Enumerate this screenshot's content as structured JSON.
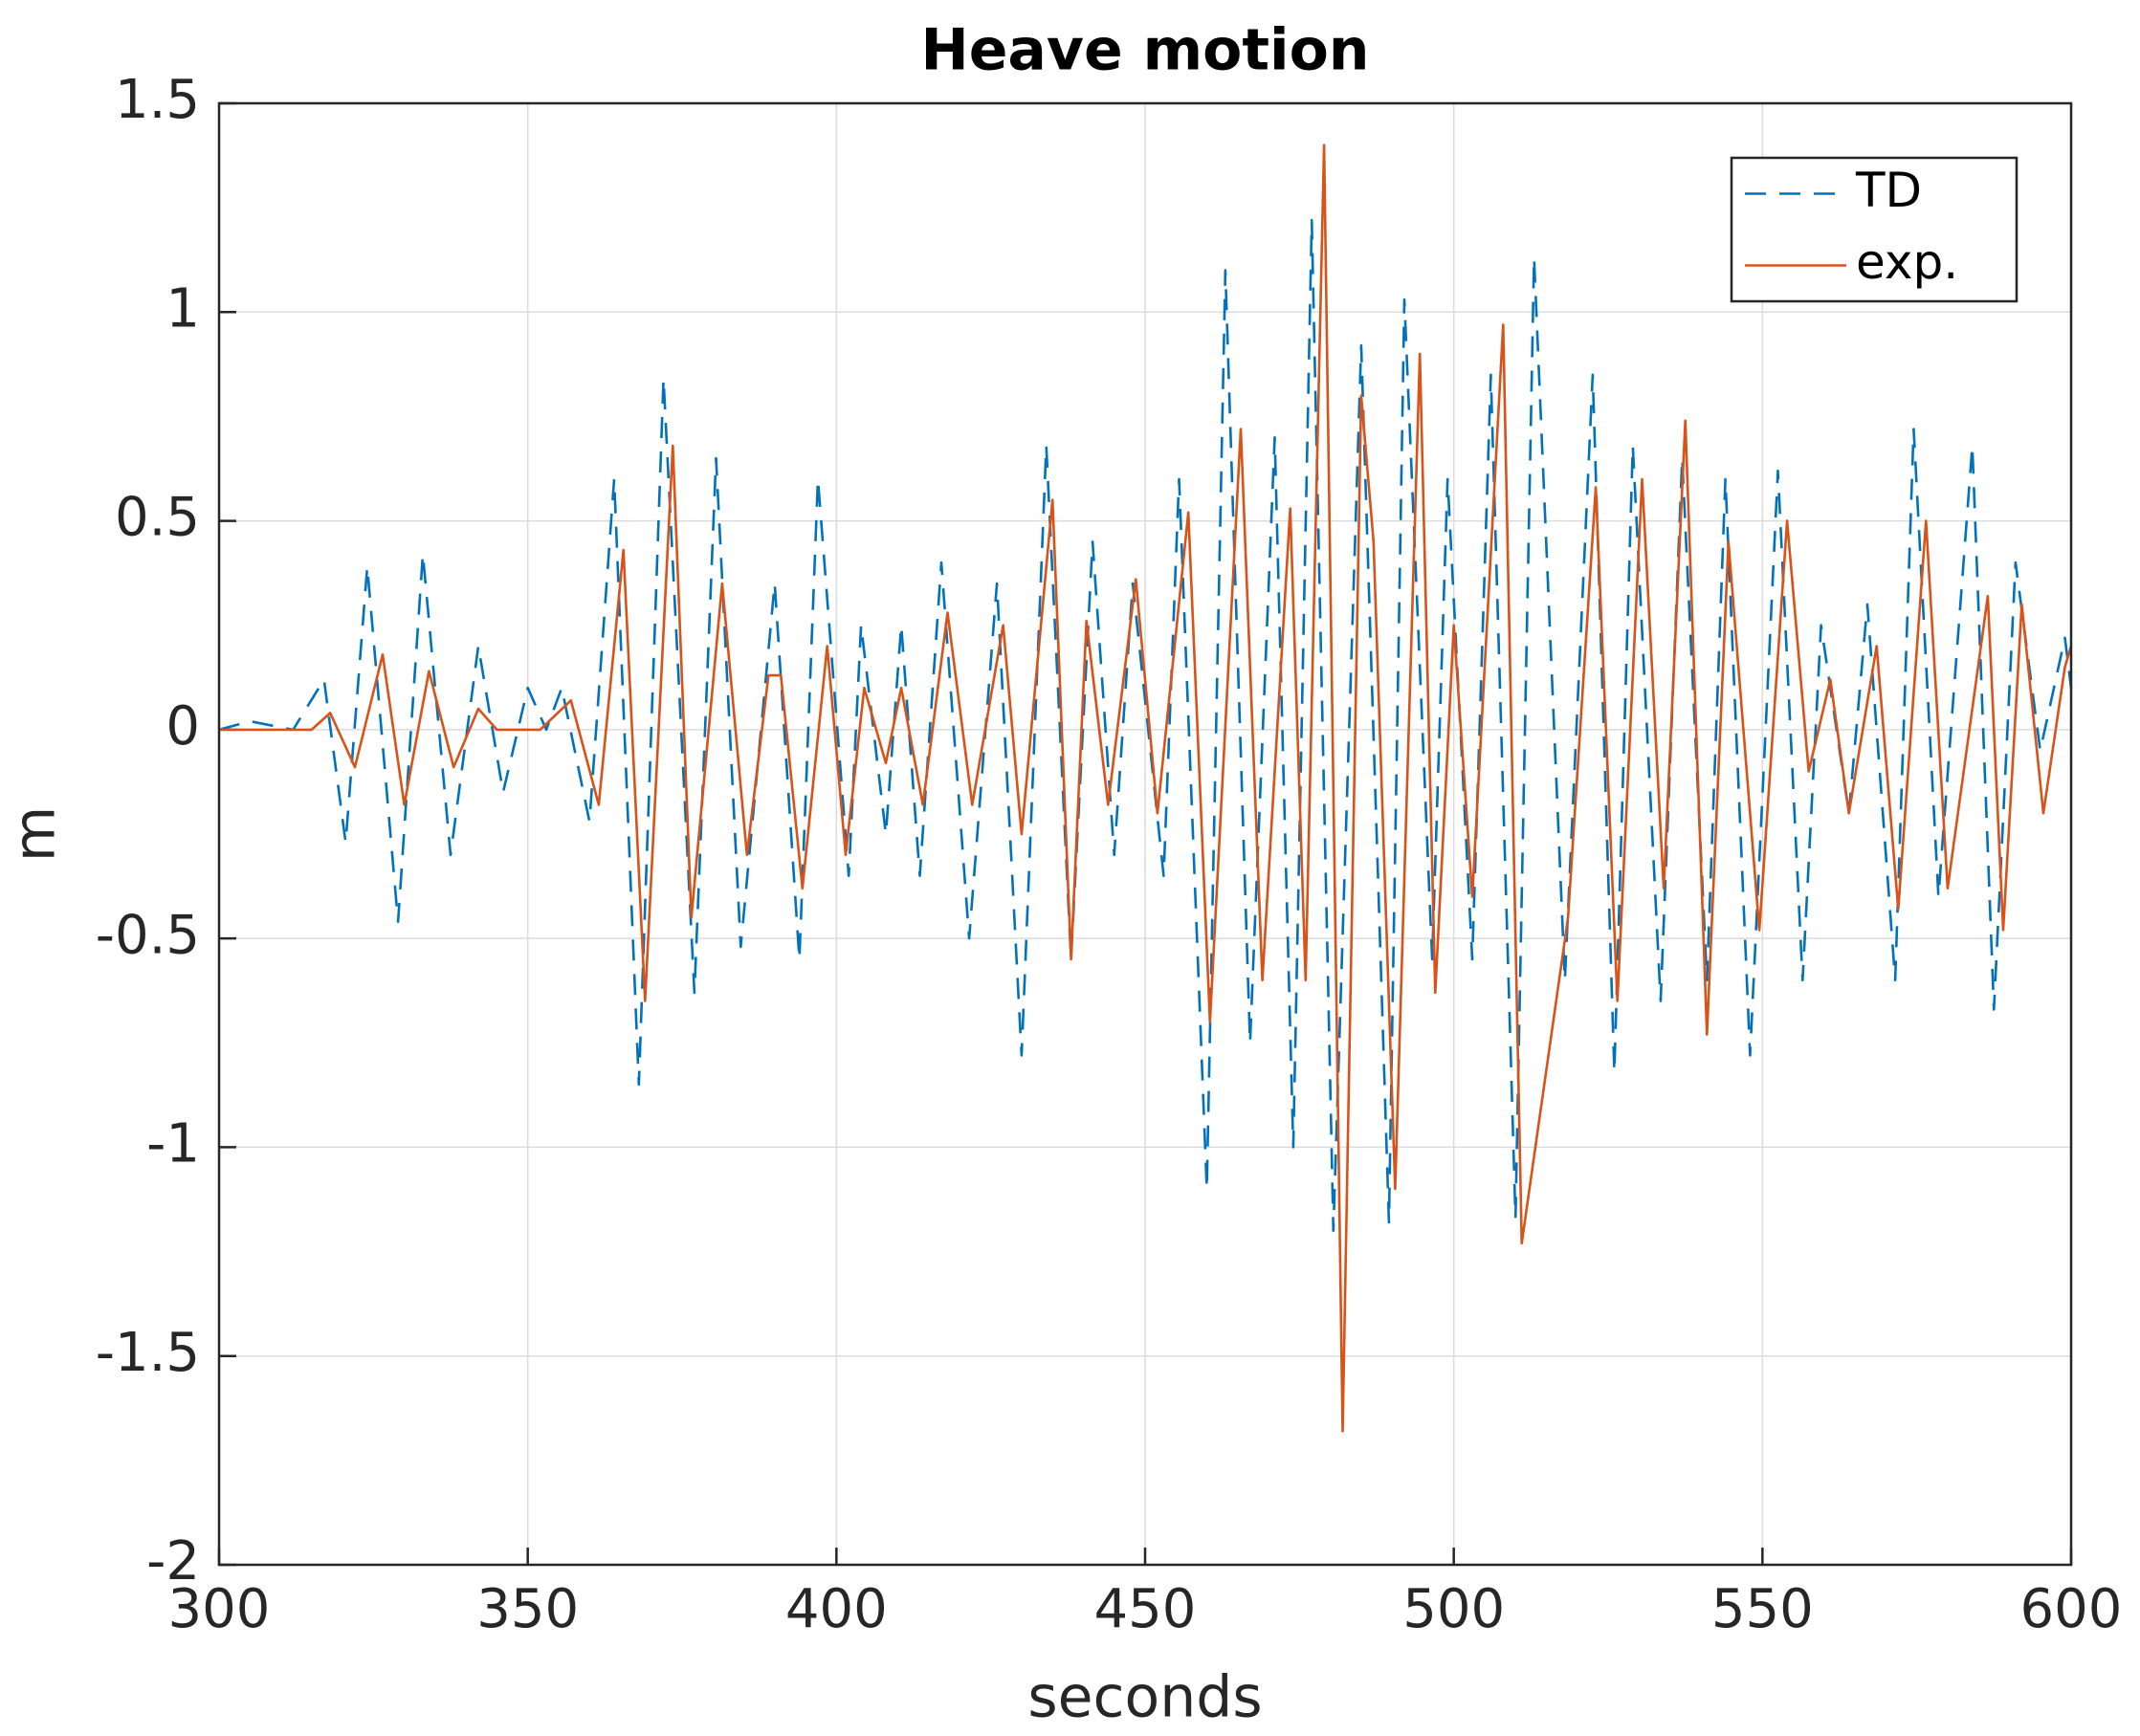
{
  "chart_data": {
    "type": "line",
    "title": "Heave motion",
    "xlabel": "seconds",
    "ylabel": "m",
    "xlim": [
      300,
      600
    ],
    "xticks": [
      300,
      350,
      400,
      450,
      500,
      550,
      600
    ],
    "ylim": [
      -2,
      1.5
    ],
    "yticks": [
      -2,
      -1.5,
      -1,
      -0.5,
      0,
      0.5,
      1,
      1.5
    ],
    "grid": true,
    "legend": "northeast",
    "series": [
      {
        "name": "TD",
        "color": "#0072bd",
        "dash": "dashed",
        "x": [
          300,
          305,
          312,
          317,
          320.5,
          324,
          329,
          333,
          337.5,
          342,
          346,
          350,
          353,
          355.5,
          360,
          364,
          368,
          372,
          377,
          380.5,
          384.5,
          390,
          394,
          397,
          402,
          404,
          408,
          410.5,
          413.5,
          417,
          421.5,
          426,
          430,
          434,
          438,
          441.5,
          445,
          448,
          453,
          455.5,
          460,
          463,
          467,
          471,
          474,
          477,
          480.5,
          485,
          489.5,
          492,
          496.5,
          499,
          503,
          506,
          510,
          513,
          518,
          522.5,
          526,
          529,
          533.5,
          537,
          541,
          544,
          548,
          552.5,
          556.5,
          559.5,
          564,
          567,
          571.5,
          574.5,
          578.5,
          584,
          587.5,
          591,
          595,
          599,
          600
        ],
        "values": [
          0,
          0.02,
          0,
          0.12,
          -0.27,
          0.39,
          -0.46,
          0.42,
          -0.3,
          0.2,
          -0.15,
          0.1,
          0,
          0.1,
          -0.22,
          0.6,
          -0.85,
          0.84,
          -0.63,
          0.65,
          -0.52,
          0.35,
          -0.55,
          0.6,
          -0.35,
          0.25,
          -0.25,
          0.25,
          -0.35,
          0.4,
          -0.5,
          0.35,
          -0.78,
          0.68,
          -0.55,
          0.45,
          -0.3,
          0.35,
          -0.35,
          0.6,
          -1.1,
          1.1,
          -0.75,
          0.7,
          -1.0,
          1.22,
          -1.2,
          0.92,
          -1.18,
          1.03,
          -0.55,
          0.6,
          -0.55,
          0.85,
          -1.17,
          1.13,
          -0.6,
          0.85,
          -0.82,
          0.68,
          -0.65,
          0.65,
          -0.6,
          0.6,
          -0.78,
          0.62,
          -0.6,
          0.25,
          -0.2,
          0.3,
          -0.6,
          0.72,
          -0.4,
          0.68,
          -0.67,
          0.4,
          -0.05,
          0.22,
          0.1
        ]
      },
      {
        "name": "exp.",
        "color": "#d95319",
        "dash": "solid",
        "x": [
          300,
          315,
          318,
          322,
          326.5,
          330,
          334,
          338,
          342,
          345,
          352,
          357,
          361.5,
          365.5,
          369,
          373.5,
          376.5,
          381.5,
          385.5,
          389,
          391,
          394.5,
          398.5,
          401.5,
          404.5,
          408,
          410.5,
          414,
          418,
          422,
          427,
          430,
          435,
          438,
          440.5,
          444,
          448.5,
          452,
          457,
          460.5,
          465.5,
          469,
          473.5,
          476,
          479,
          482,
          485,
          487,
          490.5,
          494.5,
          497,
          500,
          503,
          508,
          511,
          518.5,
          523,
          526.5,
          530.5,
          534,
          537.5,
          541,
          544.5,
          549.5,
          554,
          557.5,
          561,
          564,
          568.5,
          572,
          576.5,
          580,
          586.5,
          589,
          592,
          595.5,
          599,
          600
        ],
        "values": [
          0,
          0,
          0.04,
          -0.09,
          0.18,
          -0.18,
          0.14,
          -0.09,
          0.05,
          0,
          0,
          0.07,
          -0.18,
          0.43,
          -0.65,
          0.68,
          -0.45,
          0.35,
          -0.3,
          0.13,
          0.13,
          -0.38,
          0.2,
          -0.3,
          0.1,
          -0.08,
          0.1,
          -0.18,
          0.28,
          -0.18,
          0.25,
          -0.25,
          0.55,
          -0.55,
          0.26,
          -0.18,
          0.36,
          -0.2,
          0.52,
          -0.7,
          0.72,
          -0.6,
          0.53,
          -0.6,
          1.4,
          -1.68,
          0.8,
          0.45,
          -1.1,
          0.9,
          -0.63,
          0.25,
          -0.4,
          0.97,
          -1.23,
          -0.45,
          0.58,
          -0.65,
          0.6,
          -0.38,
          0.74,
          -0.73,
          0.45,
          -0.48,
          0.5,
          -0.1,
          0.12,
          -0.2,
          0.2,
          -0.43,
          0.5,
          -0.38,
          0.32,
          -0.48,
          0.3,
          -0.2,
          0.15,
          0.2
        ]
      }
    ]
  }
}
